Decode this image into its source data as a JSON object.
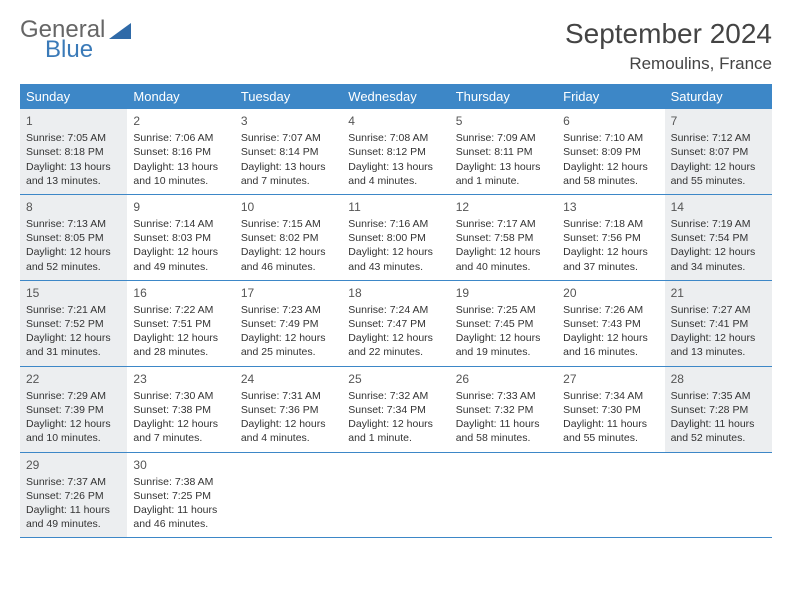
{
  "brand": {
    "part1": "General",
    "part2": "Blue"
  },
  "title": {
    "month": "September 2024",
    "location": "Remoulins, France"
  },
  "colors": {
    "header_bg": "#3d87c7",
    "shade": "#eceef0",
    "rule": "#3d87c7"
  },
  "dow": [
    "Sunday",
    "Monday",
    "Tuesday",
    "Wednesday",
    "Thursday",
    "Friday",
    "Saturday"
  ],
  "weeks": [
    [
      {
        "n": "1",
        "shade": true,
        "sr": "7:05 AM",
        "ss": "8:18 PM",
        "dl": "13 hours and 13 minutes."
      },
      {
        "n": "2",
        "shade": false,
        "sr": "7:06 AM",
        "ss": "8:16 PM",
        "dl": "13 hours and 10 minutes."
      },
      {
        "n": "3",
        "shade": false,
        "sr": "7:07 AM",
        "ss": "8:14 PM",
        "dl": "13 hours and 7 minutes."
      },
      {
        "n": "4",
        "shade": false,
        "sr": "7:08 AM",
        "ss": "8:12 PM",
        "dl": "13 hours and 4 minutes."
      },
      {
        "n": "5",
        "shade": false,
        "sr": "7:09 AM",
        "ss": "8:11 PM",
        "dl": "13 hours and 1 minute."
      },
      {
        "n": "6",
        "shade": false,
        "sr": "7:10 AM",
        "ss": "8:09 PM",
        "dl": "12 hours and 58 minutes."
      },
      {
        "n": "7",
        "shade": true,
        "sr": "7:12 AM",
        "ss": "8:07 PM",
        "dl": "12 hours and 55 minutes."
      }
    ],
    [
      {
        "n": "8",
        "shade": true,
        "sr": "7:13 AM",
        "ss": "8:05 PM",
        "dl": "12 hours and 52 minutes."
      },
      {
        "n": "9",
        "shade": false,
        "sr": "7:14 AM",
        "ss": "8:03 PM",
        "dl": "12 hours and 49 minutes."
      },
      {
        "n": "10",
        "shade": false,
        "sr": "7:15 AM",
        "ss": "8:02 PM",
        "dl": "12 hours and 46 minutes."
      },
      {
        "n": "11",
        "shade": false,
        "sr": "7:16 AM",
        "ss": "8:00 PM",
        "dl": "12 hours and 43 minutes."
      },
      {
        "n": "12",
        "shade": false,
        "sr": "7:17 AM",
        "ss": "7:58 PM",
        "dl": "12 hours and 40 minutes."
      },
      {
        "n": "13",
        "shade": false,
        "sr": "7:18 AM",
        "ss": "7:56 PM",
        "dl": "12 hours and 37 minutes."
      },
      {
        "n": "14",
        "shade": true,
        "sr": "7:19 AM",
        "ss": "7:54 PM",
        "dl": "12 hours and 34 minutes."
      }
    ],
    [
      {
        "n": "15",
        "shade": true,
        "sr": "7:21 AM",
        "ss": "7:52 PM",
        "dl": "12 hours and 31 minutes."
      },
      {
        "n": "16",
        "shade": false,
        "sr": "7:22 AM",
        "ss": "7:51 PM",
        "dl": "12 hours and 28 minutes."
      },
      {
        "n": "17",
        "shade": false,
        "sr": "7:23 AM",
        "ss": "7:49 PM",
        "dl": "12 hours and 25 minutes."
      },
      {
        "n": "18",
        "shade": false,
        "sr": "7:24 AM",
        "ss": "7:47 PM",
        "dl": "12 hours and 22 minutes."
      },
      {
        "n": "19",
        "shade": false,
        "sr": "7:25 AM",
        "ss": "7:45 PM",
        "dl": "12 hours and 19 minutes."
      },
      {
        "n": "20",
        "shade": false,
        "sr": "7:26 AM",
        "ss": "7:43 PM",
        "dl": "12 hours and 16 minutes."
      },
      {
        "n": "21",
        "shade": true,
        "sr": "7:27 AM",
        "ss": "7:41 PM",
        "dl": "12 hours and 13 minutes."
      }
    ],
    [
      {
        "n": "22",
        "shade": true,
        "sr": "7:29 AM",
        "ss": "7:39 PM",
        "dl": "12 hours and 10 minutes."
      },
      {
        "n": "23",
        "shade": false,
        "sr": "7:30 AM",
        "ss": "7:38 PM",
        "dl": "12 hours and 7 minutes."
      },
      {
        "n": "24",
        "shade": false,
        "sr": "7:31 AM",
        "ss": "7:36 PM",
        "dl": "12 hours and 4 minutes."
      },
      {
        "n": "25",
        "shade": false,
        "sr": "7:32 AM",
        "ss": "7:34 PM",
        "dl": "12 hours and 1 minute."
      },
      {
        "n": "26",
        "shade": false,
        "sr": "7:33 AM",
        "ss": "7:32 PM",
        "dl": "11 hours and 58 minutes."
      },
      {
        "n": "27",
        "shade": false,
        "sr": "7:34 AM",
        "ss": "7:30 PM",
        "dl": "11 hours and 55 minutes."
      },
      {
        "n": "28",
        "shade": true,
        "sr": "7:35 AM",
        "ss": "7:28 PM",
        "dl": "11 hours and 52 minutes."
      }
    ],
    [
      {
        "n": "29",
        "shade": true,
        "sr": "7:37 AM",
        "ss": "7:26 PM",
        "dl": "11 hours and 49 minutes."
      },
      {
        "n": "30",
        "shade": false,
        "sr": "7:38 AM",
        "ss": "7:25 PM",
        "dl": "11 hours and 46 minutes."
      },
      null,
      null,
      null,
      null,
      null
    ]
  ],
  "labels": {
    "sunrise": "Sunrise: ",
    "sunset": "Sunset: ",
    "daylight": "Daylight: "
  }
}
